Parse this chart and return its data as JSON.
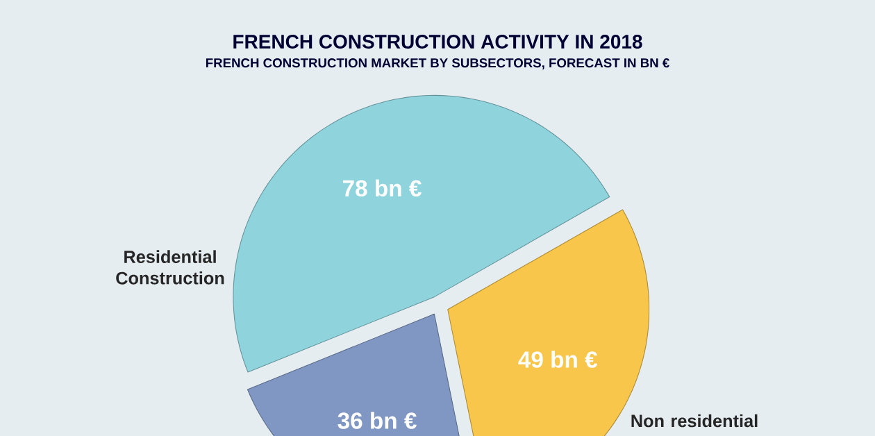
{
  "chart_data": {
    "type": "pie",
    "title": "FRENCH CONSTRUCTION ACTIVITY IN 2018",
    "subtitle": "FRENCH CONSTRUCTION MARKET BY SUBSECTORS, FORECAST IN BN €",
    "categories": [
      "Residential Construction",
      "Non residential",
      null
    ],
    "values": [
      78,
      49,
      36
    ],
    "colors": [
      "#8fd4dd",
      "#f7c64a",
      "#7f97c2"
    ],
    "value_labels": [
      "78 bn €",
      "49 bn €",
      "36 bn €"
    ]
  }
}
